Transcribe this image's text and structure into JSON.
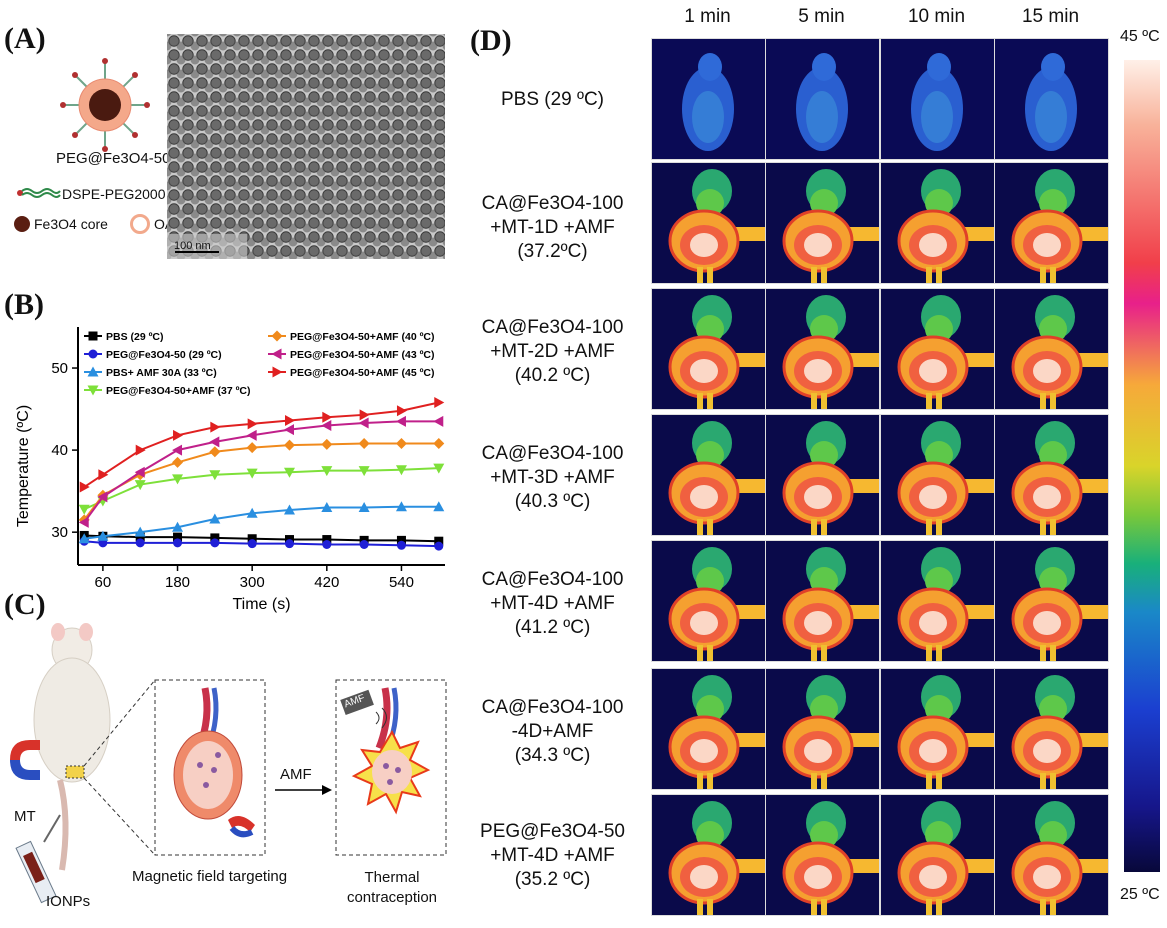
{
  "panels": {
    "A": {
      "label": "(A)",
      "nanoparticle_name": "PEG@Fe3O4-50",
      "legend": {
        "dspe": "DSPE-PEG2000",
        "core": "Fe3O4 core",
        "oa": "OA"
      },
      "tem_scale": "100 nm"
    },
    "B": {
      "label": "(B)"
    },
    "C": {
      "label": "(C)",
      "mt": "MT",
      "ionps": "IONPs",
      "amf_arrow": "AMF",
      "amf_badge": "AMF",
      "targeting": "Magnetic field targeting",
      "thermal_line1": "Thermal",
      "thermal_line2": "contraception"
    },
    "D": {
      "label": "(D)",
      "columns": [
        "1 min",
        "5 min",
        "10 min",
        "15 min"
      ],
      "rows": [
        {
          "l1": "PBS (29 ºC)",
          "l2": "",
          "l3": ""
        },
        {
          "l1": "CA@Fe3O4-100",
          "l2": "+MT-1D +AMF",
          "l3": "(37.2ºC)"
        },
        {
          "l1": "CA@Fe3O4-100",
          "l2": "+MT-2D +AMF",
          "l3": "(40.2 ºC)"
        },
        {
          "l1": "CA@Fe3O4-100",
          "l2": "+MT-3D +AMF",
          "l3": "(40.3 ºC)"
        },
        {
          "l1": "CA@Fe3O4-100",
          "l2": "+MT-4D +AMF",
          "l3": "(41.2 ºC)"
        },
        {
          "l1": "CA@Fe3O4-100",
          "l2": "-4D+AMF",
          "l3": "(34.3 ºC)"
        },
        {
          "l1": "PEG@Fe3O4-50",
          "l2": "+MT-4D +AMF",
          "l3": "(35.2 ºC)"
        }
      ],
      "colorbar_max": "45 ºC",
      "colorbar_min": "25 ºC"
    }
  },
  "chart_data": {
    "type": "line",
    "xlabel": "Time  (s)",
    "ylabel": "Temperature  (ºC)",
    "xlim": [
      20,
      610
    ],
    "ylim": [
      26,
      55
    ],
    "xticks": [
      60,
      180,
      300,
      420,
      540
    ],
    "yticks": [
      30,
      40,
      50
    ],
    "x": [
      30,
      60,
      120,
      180,
      240,
      300,
      360,
      420,
      480,
      540,
      600
    ],
    "series": [
      {
        "name": "PBS (29 ºC)",
        "color": "#000000",
        "marker": "square",
        "values": [
          29.6,
          29.5,
          29.4,
          29.4,
          29.3,
          29.2,
          29.1,
          29.1,
          29.0,
          29.0,
          28.9
        ]
      },
      {
        "name": "PEG@Fe3O4-50 (29 ºC)",
        "color": "#1f1fd6",
        "marker": "circle",
        "values": [
          28.9,
          28.7,
          28.7,
          28.7,
          28.7,
          28.6,
          28.6,
          28.5,
          28.5,
          28.4,
          28.3
        ]
      },
      {
        "name": "PBS+ AMF 30A (33 ºC)",
        "color": "#2a8fe0",
        "marker": "triangle-up",
        "values": [
          29.2,
          29.5,
          30.0,
          30.6,
          31.6,
          32.3,
          32.7,
          33.0,
          33.0,
          33.1,
          33.1
        ]
      },
      {
        "name": "PEG@Fe3O4-50+AMF (37 ºC)",
        "color": "#7ee03a",
        "marker": "triangle-down",
        "values": [
          32.8,
          33.8,
          35.8,
          36.5,
          37.0,
          37.2,
          37.3,
          37.5,
          37.5,
          37.6,
          37.8
        ]
      },
      {
        "name": "PEG@Fe3O4-50+AMF (40 ºC)",
        "color": "#f08a1c",
        "marker": "diamond",
        "values": [
          31.5,
          34.5,
          37.0,
          38.5,
          39.8,
          40.3,
          40.6,
          40.7,
          40.8,
          40.8,
          40.8
        ]
      },
      {
        "name": "PEG@Fe3O4-50+AMF (43 ºC)",
        "color": "#c0208a",
        "marker": "triangle-left",
        "values": [
          31.2,
          34.3,
          37.3,
          40.0,
          41.0,
          41.8,
          42.5,
          43.0,
          43.3,
          43.5,
          43.5
        ]
      },
      {
        "name": "PEG@Fe3O4-50+AMF (45 ºC)",
        "color": "#e02020",
        "marker": "triangle-right",
        "values": [
          35.5,
          37.0,
          40.0,
          41.8,
          42.8,
          43.2,
          43.6,
          44.0,
          44.3,
          44.8,
          45.8
        ]
      }
    ]
  }
}
